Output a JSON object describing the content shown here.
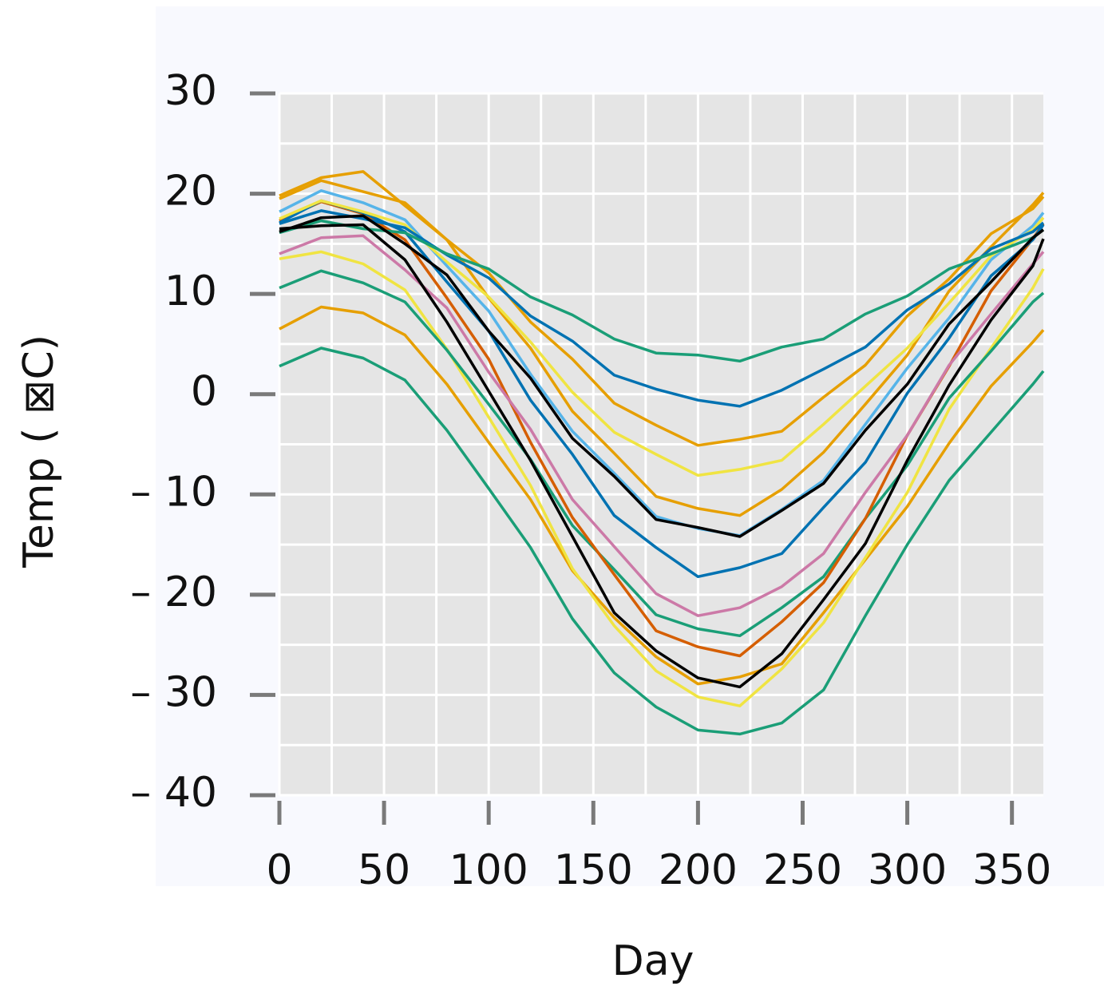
{
  "chart_data": {
    "type": "line",
    "x_label": "Day",
    "y_label": "Temp ( ⊠C)",
    "x": [
      0,
      20,
      40,
      60,
      80,
      100,
      120,
      140,
      160,
      180,
      200,
      220,
      240,
      260,
      280,
      300,
      320,
      340,
      360,
      365
    ],
    "xlim": [
      0,
      365
    ],
    "xticks": [
      0,
      50,
      100,
      150,
      200,
      250,
      300,
      350
    ],
    "ylim": [
      -40,
      30
    ],
    "yticks": [
      {
        "value": -40,
        "label": "– 40"
      },
      {
        "value": -30,
        "label": "– 30"
      },
      {
        "value": -20,
        "label": "– 20"
      },
      {
        "value": -10,
        "label": "– 10"
      },
      0,
      10,
      20,
      30
    ],
    "grid": true,
    "series": [
      {
        "color": "#1a9e77",
        "values": [
          2.8,
          4.6,
          3.6,
          1.4,
          -3.6,
          -9.4,
          -15.3,
          -22.4,
          -27.8,
          -31.2,
          -33.5,
          -33.9,
          -32.8,
          -29.5,
          -22.1,
          -15.0,
          -8.6,
          -3.8,
          1.0,
          2.3
        ]
      },
      {
        "color": "#e69f00",
        "values": [
          6.5,
          8.7,
          8.1,
          5.9,
          1.0,
          -4.8,
          -10.5,
          -17.6,
          -22.3,
          -26.2,
          -28.9,
          -28.2,
          -26.9,
          -21.8,
          -16.5,
          -11.2,
          -4.9,
          0.8,
          5.2,
          6.4
        ]
      },
      {
        "color": "#f0e442",
        "values": [
          13.5,
          14.2,
          13.0,
          10.4,
          4.5,
          -2.3,
          -9.1,
          -17.4,
          -23.1,
          -27.6,
          -30.2,
          -31.1,
          -27.4,
          -22.8,
          -16.3,
          -9.8,
          -1.5,
          4.6,
          10.6,
          12.5
        ]
      },
      {
        "color": "#1a9e77",
        "values": [
          10.6,
          12.3,
          11.1,
          9.2,
          4.4,
          -1.0,
          -6.5,
          -13.1,
          -17.5,
          -22.0,
          -23.4,
          -24.1,
          -21.3,
          -18.2,
          -12.4,
          -7.1,
          -0.4,
          4.3,
          9.2,
          10.1
        ]
      },
      {
        "color": "#d55e00",
        "values": [
          17.3,
          19.2,
          18.0,
          15.4,
          9.6,
          3.5,
          -4.8,
          -12.3,
          -18.0,
          -23.6,
          -25.2,
          -26.1,
          -22.7,
          -18.8,
          -12.4,
          -4.1,
          2.8,
          10.3,
          15.5,
          17.0
        ]
      },
      {
        "color": "#cc79a7",
        "values": [
          14.0,
          15.6,
          15.8,
          12.4,
          8.6,
          2.2,
          -3.5,
          -10.5,
          -15.2,
          -19.9,
          -22.1,
          -21.3,
          -19.2,
          -15.9,
          -9.8,
          -4.1,
          2.9,
          8.0,
          13.0,
          14.2
        ]
      },
      {
        "color": "#0072b2",
        "values": [
          17.1,
          19.3,
          18.1,
          16.2,
          11.2,
          6.3,
          -0.6,
          -6.0,
          -12.1,
          -15.3,
          -18.2,
          -17.3,
          -15.9,
          -11.3,
          -6.8,
          0.1,
          5.6,
          11.8,
          15.4,
          16.9
        ]
      },
      {
        "color": "#56b4e9",
        "values": [
          18.2,
          20.3,
          19.1,
          17.4,
          12.8,
          8.3,
          2.0,
          -3.7,
          -7.9,
          -12.2,
          -13.4,
          -14.1,
          -11.5,
          -8.6,
          -3.0,
          2.6,
          7.6,
          13.4,
          16.8,
          18.1
        ]
      },
      {
        "color": "#e69f00",
        "values": [
          19.8,
          21.6,
          22.2,
          18.8,
          15.4,
          9.6,
          4.6,
          -1.7,
          -5.9,
          -10.2,
          -11.4,
          -12.1,
          -9.5,
          -5.8,
          -1.0,
          3.9,
          10.3,
          14.7,
          18.9,
          20.1
        ]
      },
      {
        "color": "#f0e442",
        "values": [
          17.5,
          19.3,
          18.2,
          16.9,
          13.2,
          9.7,
          5.2,
          0.2,
          -3.8,
          -6.0,
          -8.1,
          -7.5,
          -6.6,
          -3.0,
          0.8,
          4.6,
          9.1,
          13.8,
          16.4,
          17.6
        ]
      },
      {
        "color": "#e69f00",
        "values": [
          19.5,
          21.3,
          20.2,
          19.1,
          15.4,
          12.1,
          7.2,
          3.5,
          -0.9,
          -3.1,
          -5.1,
          -4.5,
          -3.7,
          -0.3,
          2.9,
          7.8,
          11.5,
          16.0,
          18.5,
          19.7
        ]
      },
      {
        "color": "#0072b2",
        "values": [
          17.0,
          18.3,
          17.5,
          16.6,
          13.9,
          11.6,
          7.8,
          5.3,
          1.9,
          0.5,
          -0.6,
          -1.2,
          0.4,
          2.5,
          4.7,
          8.4,
          11.0,
          14.5,
          16.2,
          17.1
        ]
      },
      {
        "color": "#1a9e77",
        "values": [
          16.1,
          17.3,
          16.5,
          16.1,
          14.0,
          12.5,
          9.7,
          7.9,
          5.5,
          4.1,
          3.9,
          3.3,
          4.7,
          5.5,
          8.0,
          9.8,
          12.5,
          14.0,
          15.6,
          16.4
        ]
      },
      {
        "color": "#000000",
        "values": [
          16.2,
          17.6,
          17.8,
          15.0,
          11.9,
          6.3,
          1.6,
          -4.4,
          -8.2,
          -12.5,
          -13.3,
          -14.2,
          -11.6,
          -8.9,
          -3.6,
          1.0,
          7.0,
          11.2,
          15.6,
          16.4
        ]
      },
      {
        "color": "#000000",
        "values": [
          16.5,
          16.8,
          16.9,
          13.4,
          7.2,
          0.3,
          -6.6,
          -14.2,
          -21.8,
          -25.6,
          -28.3,
          -29.2,
          -25.9,
          -20.5,
          -14.9,
          -6.6,
          0.9,
          7.4,
          12.8,
          15.5
        ]
      }
    ]
  }
}
